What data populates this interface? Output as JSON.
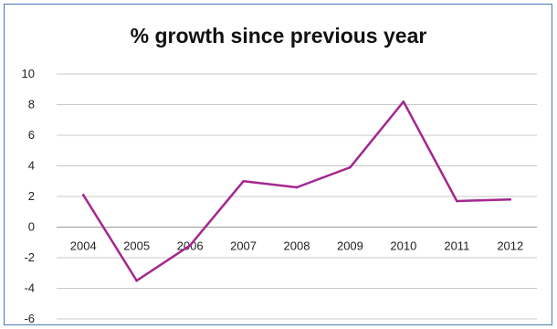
{
  "chart_data": {
    "type": "line",
    "title": "% growth since previous year",
    "categories": [
      "2004",
      "2005",
      "2006",
      "2007",
      "2008",
      "2009",
      "2010",
      "2011",
      "2012"
    ],
    "series": [
      {
        "values": [
          2.1,
          -3.5,
          -1.2,
          3.0,
          2.6,
          3.9,
          8.2,
          1.7,
          1.8
        ]
      }
    ],
    "ylim": [
      -6,
      10
    ],
    "yticks": [
      "10",
      "8",
      "6",
      "4",
      "2",
      "0",
      "-2",
      "-4",
      "-6"
    ],
    "grid": true,
    "line_color": "#a4278f",
    "frame_color": "#4a7ab8"
  }
}
